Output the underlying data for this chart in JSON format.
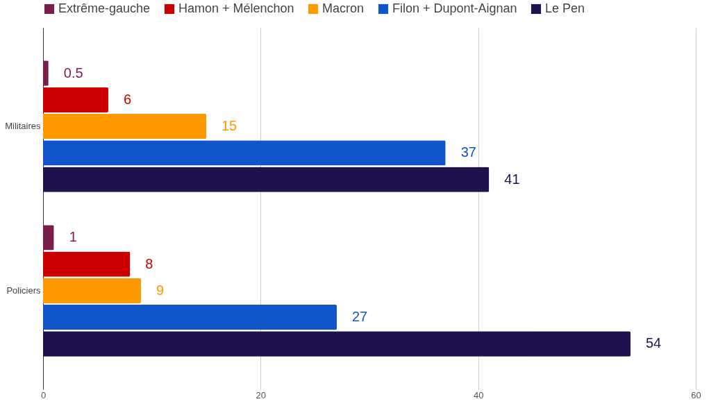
{
  "chart_data": {
    "type": "bar",
    "orientation": "horizontal",
    "categories": [
      "Militaires",
      "Policiers"
    ],
    "series": [
      {
        "name": "Extrême-gauche",
        "color": "#7b1e4e",
        "values": [
          0.5,
          1
        ]
      },
      {
        "name": "Hamon + Mélenchon",
        "color": "#cc0000",
        "values": [
          6,
          8
        ]
      },
      {
        "name": "Macron",
        "color": "#ff9900",
        "values": [
          15,
          9
        ]
      },
      {
        "name": "Filon + Dupont-Aignan",
        "color": "#1155cc",
        "values": [
          37,
          27
        ]
      },
      {
        "name": "Le Pen",
        "color": "#20124d",
        "values": [
          41,
          54
        ]
      }
    ],
    "xlim": [
      0,
      60
    ],
    "xticks": [
      0,
      20,
      40,
      60
    ],
    "grid": "x",
    "legend": "top",
    "data_labels": true
  }
}
